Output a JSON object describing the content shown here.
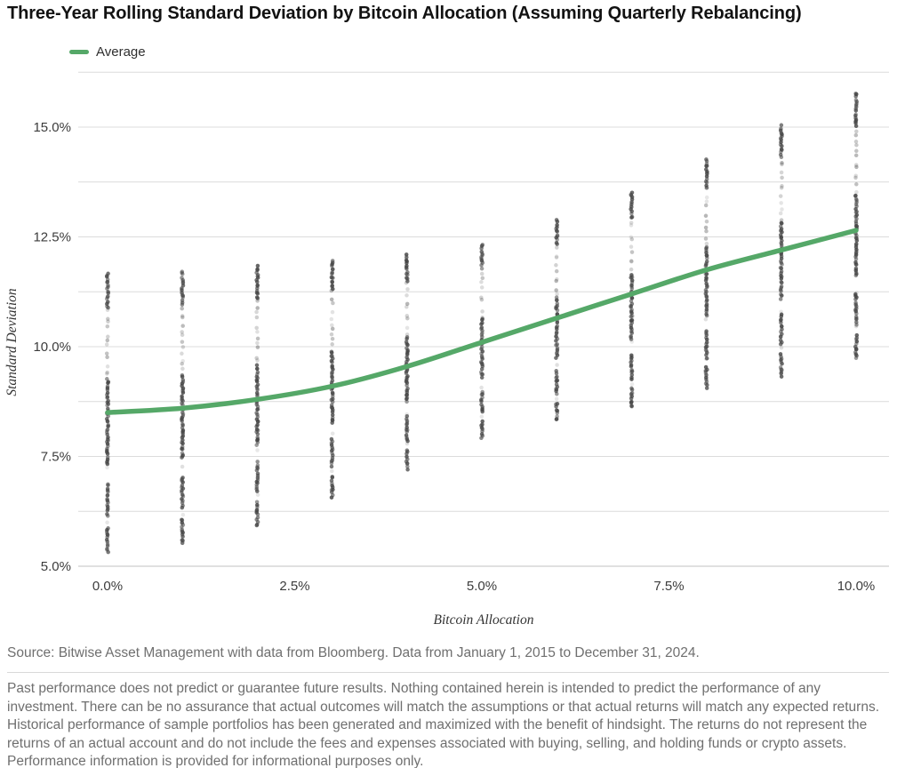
{
  "title": "Three-Year Rolling Standard Deviation by Bitcoin Allocation (Assuming Quarterly Rebalancing)",
  "legend": {
    "label": "Average",
    "color": "#55A868"
  },
  "colors": {
    "average_line": "#55A868",
    "scatter_dots": "#454545",
    "gridline": "#dcdcdc",
    "axis_line": "#c2c2c2",
    "tick_text": "#3c3c3c",
    "body_text": "#6f6f6f"
  },
  "chart_data": {
    "type": "scatter",
    "title": "Three-Year Rolling Standard Deviation by Bitcoin Allocation (Assuming Quarterly Rebalancing)",
    "xlabel": "Bitcoin Allocation",
    "ylabel": "Standard Deviation",
    "x_ticks": [
      "0.0%",
      "2.5%",
      "5.0%",
      "7.5%",
      "10.0%"
    ],
    "x_tick_values": [
      0,
      2.5,
      5,
      7.5,
      10
    ],
    "y_ticks": [
      "5.0%",
      "7.5%",
      "10.0%",
      "12.5%",
      "15.0%"
    ],
    "y_tick_values": [
      5,
      7.5,
      10,
      12.5,
      15
    ],
    "ylim": [
      5.0,
      16.25
    ],
    "grid": "horizontal minor gridlines every 1.25%, no vertical gridlines, legend top-left",
    "legend_entries": [
      "Average"
    ],
    "columns": [
      {
        "allocation_pct": 0,
        "min_sd_pct": 5.3,
        "max_sd_pct": 11.7,
        "avg_sd_pct": 8.5
      },
      {
        "allocation_pct": 1,
        "min_sd_pct": 5.5,
        "max_sd_pct": 11.75,
        "avg_sd_pct": 8.6
      },
      {
        "allocation_pct": 2,
        "min_sd_pct": 5.9,
        "max_sd_pct": 11.85,
        "avg_sd_pct": 8.8
      },
      {
        "allocation_pct": 3,
        "min_sd_pct": 6.55,
        "max_sd_pct": 12.0,
        "avg_sd_pct": 9.1
      },
      {
        "allocation_pct": 4,
        "min_sd_pct": 7.2,
        "max_sd_pct": 12.1,
        "avg_sd_pct": 9.55
      },
      {
        "allocation_pct": 5,
        "min_sd_pct": 7.9,
        "max_sd_pct": 12.35,
        "avg_sd_pct": 10.1
      },
      {
        "allocation_pct": 6,
        "min_sd_pct": 8.3,
        "max_sd_pct": 12.9,
        "avg_sd_pct": 10.65
      },
      {
        "allocation_pct": 7,
        "min_sd_pct": 8.6,
        "max_sd_pct": 13.55,
        "avg_sd_pct": 11.2
      },
      {
        "allocation_pct": 8,
        "min_sd_pct": 9.05,
        "max_sd_pct": 14.3,
        "avg_sd_pct": 11.75
      },
      {
        "allocation_pct": 9,
        "min_sd_pct": 9.3,
        "max_sd_pct": 15.05,
        "avg_sd_pct": 12.2
      },
      {
        "allocation_pct": 10,
        "min_sd_pct": 9.7,
        "max_sd_pct": 15.8,
        "avg_sd_pct": 12.65
      }
    ],
    "series": [
      {
        "name": "Average",
        "x": [
          0,
          1,
          2,
          3,
          4,
          5,
          6,
          7,
          8,
          9,
          10
        ],
        "values": [
          8.5,
          8.6,
          8.8,
          9.1,
          9.55,
          10.1,
          10.65,
          11.2,
          11.75,
          12.2,
          12.65
        ]
      }
    ]
  },
  "source": "Source: Bitwise Asset Management with data from Bloomberg. Data from January 1, 2015 to December 31, 2024.",
  "disclaimer": "Past performance does not predict or guarantee future results. Nothing contained herein is intended to predict the performance of any investment. There can be no assurance that actual outcomes will match the assumptions or that actual returns will match any expected returns. Historical performance of sample portfolios has been generated and maximized with the benefit of hindsight. The returns do not represent the returns of an actual account and do not include the fees and expenses associated with buying, selling, and holding funds or crypto assets. Performance information is provided for informational purposes only."
}
